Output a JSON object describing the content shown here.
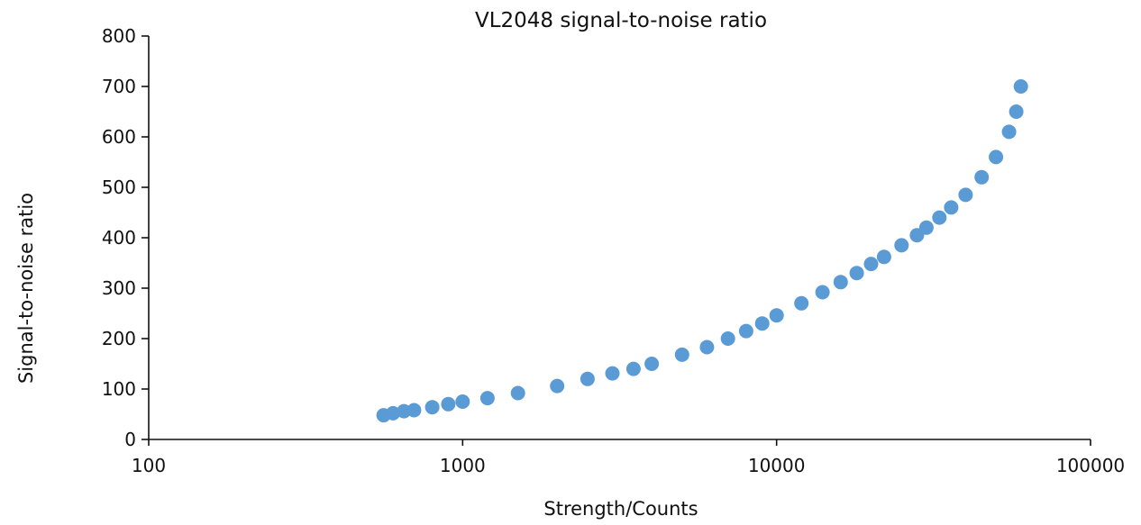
{
  "chart_data": {
    "type": "scatter",
    "title": "VL2048 signal-to-noise ratio",
    "xlabel": "Strength/Counts",
    "ylabel": "Signal-to-noise ratio",
    "x_scale": "log",
    "xlim": [
      100,
      100000
    ],
    "ylim": [
      0,
      800
    ],
    "x_ticks": [
      "100",
      "1000",
      "10000",
      "100000"
    ],
    "y_ticks": [
      "0",
      "100",
      "200",
      "300",
      "400",
      "500",
      "600",
      "700",
      "800"
    ],
    "grid": false,
    "color": "#5b9bd5",
    "series": [
      {
        "x": [
          560,
          600,
          650,
          700,
          800,
          900,
          1000,
          1200,
          1500,
          2000,
          2500,
          3000,
          3500,
          4000,
          5000,
          6000,
          7000,
          8000,
          9000,
          10000,
          12000,
          14000,
          16000,
          18000,
          20000,
          22000,
          25000,
          28000,
          30000,
          33000,
          36000,
          40000,
          45000,
          50000,
          55000,
          58000,
          60000
        ],
        "y": [
          48,
          52,
          56,
          58,
          64,
          70,
          75,
          82,
          92,
          106,
          120,
          131,
          140,
          150,
          168,
          183,
          200,
          215,
          230,
          246,
          270,
          292,
          312,
          330,
          348,
          362,
          385,
          405,
          420,
          440,
          460,
          485,
          520,
          560,
          610,
          650,
          700
        ]
      }
    ]
  }
}
